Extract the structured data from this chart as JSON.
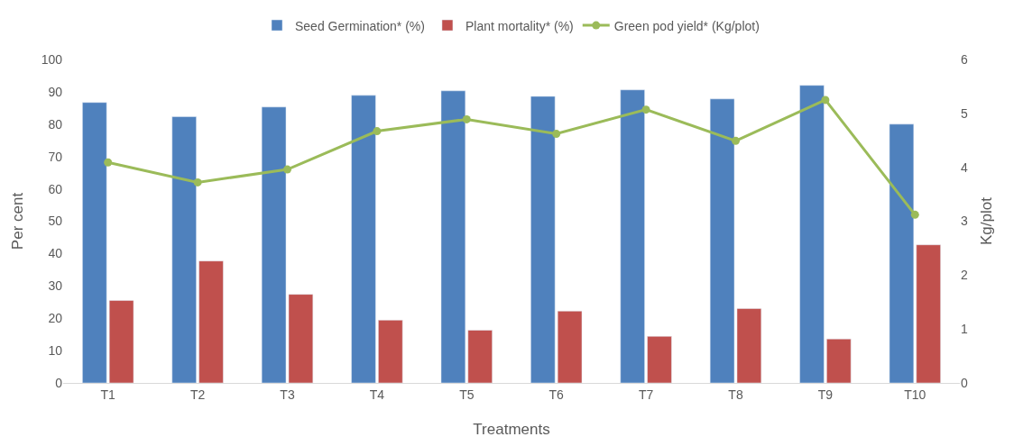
{
  "chart_data": {
    "type": "bar",
    "xlabel": "Treatments",
    "ylabel": "Per cent",
    "y2label": "Kg/plot",
    "categories": [
      "T1",
      "T2",
      "T3",
      "T4",
      "T5",
      "T6",
      "T7",
      "T8",
      "T9",
      "T10"
    ],
    "series": [
      {
        "name": "Seed Germination* (%)",
        "color": "#4f81bd",
        "values": [
          86.7,
          82.3,
          85.3,
          88.9,
          90.3,
          88.6,
          90.6,
          87.8,
          92.0,
          80.0
        ]
      },
      {
        "name": "Plant mortality* (%)",
        "color": "#c0504d",
        "values": [
          25.5,
          37.7,
          27.4,
          19.4,
          16.3,
          22.2,
          14.4,
          23.0,
          13.6,
          42.7
        ]
      },
      {
        "name": "Green pod yield* (Kg/plot)",
        "color": "#9bbb59",
        "type": "line",
        "axis": "y2",
        "marker": "circle",
        "values": [
          4.09,
          3.72,
          3.96,
          4.67,
          4.89,
          4.62,
          5.07,
          4.49,
          5.25,
          3.12
        ]
      }
    ],
    "ylim": [
      0,
      100
    ],
    "yticks": [
      0,
      10,
      20,
      30,
      40,
      50,
      60,
      70,
      80,
      90,
      100
    ],
    "y2lim": [
      0,
      6
    ],
    "y2ticks": [
      0,
      1,
      2,
      3,
      4,
      5,
      6
    ],
    "legend": "top"
  }
}
